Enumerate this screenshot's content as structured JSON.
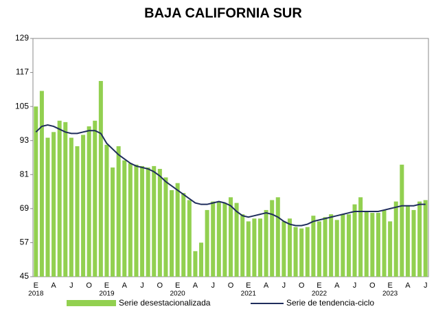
{
  "chart_data": {
    "type": "bar-line",
    "title": "BAJA CALIFORNIA SUR",
    "categories": [
      "E",
      null,
      null,
      "A",
      null,
      null,
      "J",
      null,
      null,
      "O",
      null,
      null,
      "E",
      null,
      null,
      "A",
      null,
      null,
      "J",
      null,
      null,
      "O",
      null,
      null,
      "E",
      null,
      null,
      "A",
      null,
      null,
      "J",
      null,
      null,
      "O",
      null,
      null,
      "E",
      null,
      null,
      "A",
      null,
      null,
      "J",
      null,
      null,
      "O",
      null,
      null,
      "E",
      null,
      null,
      "A",
      null,
      null,
      "J",
      null,
      null,
      "O",
      null,
      null,
      "E",
      null,
      null,
      "A",
      null,
      null,
      "J"
    ],
    "years": [
      "2018",
      "2019",
      "2020",
      "2021",
      "2022",
      "2023"
    ],
    "ylim": [
      45,
      129
    ],
    "yticks": [
      45,
      57,
      69,
      81,
      93,
      105,
      117,
      129
    ],
    "grid": false,
    "series": [
      {
        "name": "Serie desestacionalizada",
        "type": "bar",
        "color": "#92d050",
        "values": [
          105,
          110.5,
          94,
          96,
          100,
          99.5,
          94,
          91,
          95,
          98,
          100,
          114,
          91.5,
          83.5,
          91,
          86,
          85,
          84.5,
          84,
          83.5,
          84,
          83,
          80,
          75.5,
          78,
          74.5,
          72,
          54,
          57,
          68.5,
          71.5,
          71.5,
          71,
          73,
          71,
          67,
          64.5,
          65.5,
          65.5,
          68.5,
          72,
          73,
          64.5,
          65.5,
          62.5,
          62,
          62.5,
          66.5,
          64.5,
          66,
          67,
          65,
          67,
          67,
          70.5,
          73,
          68,
          67.5,
          67.5,
          68.5,
          64.5,
          71.5,
          84.5,
          70,
          68.5,
          71.5,
          72
        ]
      },
      {
        "name": "Serie de tendencia-ciclo",
        "type": "line",
        "color": "#1f2d5c",
        "values": [
          96,
          98,
          98.5,
          98,
          97,
          96,
          95.5,
          95.5,
          96,
          96.5,
          96.5,
          95.5,
          92,
          90,
          88,
          86.5,
          85,
          84,
          83.5,
          83,
          82,
          80.5,
          78.5,
          77,
          75.5,
          74,
          72.5,
          71,
          70.5,
          70.5,
          71,
          71.5,
          71,
          70,
          68,
          66.5,
          66,
          66.5,
          67,
          67.5,
          67,
          66,
          64.5,
          63.5,
          63,
          63,
          63.5,
          64.5,
          65,
          65.5,
          66,
          66.5,
          67,
          67.5,
          68,
          68,
          68,
          68,
          68,
          68.5,
          69,
          69.5,
          70,
          70,
          70,
          70.5,
          70.5
        ]
      }
    ]
  }
}
